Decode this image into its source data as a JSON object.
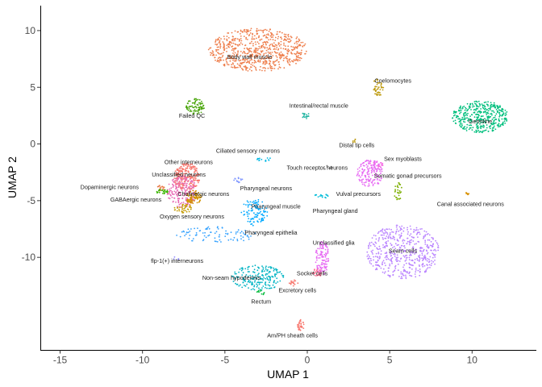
{
  "chart_data": {
    "type": "scatter",
    "xlabel": "UMAP 1",
    "ylabel": "UMAP 2",
    "xlim": [
      -16.2,
      13.9
    ],
    "ylim": [
      -18.2,
      12.2
    ],
    "x_ticks": [
      -15,
      -10,
      -5,
      0,
      5,
      10
    ],
    "y_ticks": [
      -10,
      -5,
      0,
      5,
      10
    ],
    "grid": false,
    "legend": "none",
    "clusters": [
      {
        "label": "Body wall muscle",
        "color": "#EE7F4D",
        "cx": -3.0,
        "cy": 8.3,
        "rx": 3.0,
        "ry": 1.9,
        "n": 700,
        "label_x": -3.5,
        "label_y": 7.7
      },
      {
        "label": "Coelomocytes",
        "color": "#BE9B11",
        "cx": 4.3,
        "cy": 5.0,
        "rx": 0.35,
        "ry": 0.8,
        "n": 50,
        "label_x": 5.2,
        "label_y": 5.6
      },
      {
        "label": "Germline",
        "color": "#00BF7D",
        "cx": 10.5,
        "cy": 2.4,
        "rx": 1.7,
        "ry": 1.4,
        "n": 400,
        "label_x": 10.5,
        "label_y": 2.0
      },
      {
        "label": "Failed QC",
        "color": "#49A50A",
        "cx": -6.8,
        "cy": 3.3,
        "rx": 0.55,
        "ry": 0.7,
        "n": 80,
        "label_x": -7.0,
        "label_y": 2.5
      },
      {
        "label": "Intestinal/rectal muscle",
        "color": "#1EB3A0",
        "cx": -0.1,
        "cy": 2.5,
        "rx": 0.25,
        "ry": 0.35,
        "n": 20,
        "label_x": 0.7,
        "label_y": 3.4
      },
      {
        "label": "Distal tip cells",
        "color": "#BE9B11",
        "cx": 2.8,
        "cy": 0.3,
        "rx": 0.15,
        "ry": 0.2,
        "n": 6,
        "label_x": 3.0,
        "label_y": -0.1
      },
      {
        "label": "Ciliated sensory neurons",
        "color": "#00B8E5",
        "cx": -2.7,
        "cy": -1.3,
        "rx": 0.5,
        "ry": 0.25,
        "n": 15,
        "label_x": -3.6,
        "label_y": -0.6
      },
      {
        "label": "Sex myoblasts",
        "color": "#F564E3",
        "cx": 4.2,
        "cy": -1.8,
        "rx": 0.4,
        "ry": 0.3,
        "n": 20,
        "label_x": 5.8,
        "label_y": -1.3
      },
      {
        "label": "Other interneurons",
        "color": "#F8766D",
        "cx": -7.3,
        "cy": -2.9,
        "rx": 0.8,
        "ry": 1.2,
        "n": 220,
        "label_x": -7.2,
        "label_y": -1.6
      },
      {
        "label": "Touch receptor neurons",
        "color": "#7F7F7F",
        "cx": 1.2,
        "cy": -2.1,
        "rx": 0.3,
        "ry": 0.2,
        "n": 8,
        "label_x": 0.6,
        "label_y": -2.1
      },
      {
        "label": "Somatic gonad precursors",
        "color": "#E76BF3",
        "cx": 3.8,
        "cy": -2.6,
        "rx": 0.8,
        "ry": 1.2,
        "n": 160,
        "label_x": 6.1,
        "label_y": -2.8
      },
      {
        "label": "Unclassified neurons",
        "color": "#E86BB5",
        "cx": -7.6,
        "cy": -4.2,
        "rx": 0.9,
        "ry": 1.4,
        "n": 200,
        "label_x": -7.8,
        "label_y": -2.7
      },
      {
        "label": "Dopaminergic neurons",
        "color": "#E8723E",
        "cx": -8.9,
        "cy": -3.9,
        "rx": 0.25,
        "ry": 0.25,
        "n": 15,
        "label_x": -12.0,
        "label_y": -3.8
      },
      {
        "label": "Pharyngeal neurons",
        "color": "#7F96FF",
        "cx": -4.2,
        "cy": -3.2,
        "rx": 0.3,
        "ry": 0.25,
        "n": 15,
        "label_x": -2.5,
        "label_y": -3.9
      },
      {
        "label": "Cholinergic neurons",
        "color": "#D39200",
        "cx": -6.9,
        "cy": -4.7,
        "rx": 0.5,
        "ry": 0.6,
        "n": 80,
        "label_x": -6.3,
        "label_y": -4.4
      },
      {
        "label": "GABAergic neurons",
        "color": "#39B600",
        "cx": -8.8,
        "cy": -4.2,
        "rx": 0.4,
        "ry": 0.2,
        "n": 25,
        "label_x": -10.4,
        "label_y": -4.9
      },
      {
        "label": "Vulval precursors",
        "color": "#7CAE00",
        "cx": 5.5,
        "cy": -4.2,
        "rx": 0.25,
        "ry": 0.8,
        "n": 30,
        "label_x": 3.1,
        "label_y": -4.4
      },
      {
        "label": "Canal associated neurons",
        "color": "#D89000",
        "cx": 9.7,
        "cy": -4.4,
        "rx": 0.15,
        "ry": 0.15,
        "n": 8,
        "label_x": 9.9,
        "label_y": -5.3
      },
      {
        "label": "Pharyngeal muscle",
        "color": "#00A9FF",
        "cx": -3.2,
        "cy": -6.0,
        "rx": 0.8,
        "ry": 1.2,
        "n": 100,
        "label_x": -1.9,
        "label_y": -5.5
      },
      {
        "label": "Pharyngeal gland",
        "color": "#00BCD8",
        "cx": 0.9,
        "cy": -4.6,
        "rx": 0.5,
        "ry": 0.2,
        "n": 15,
        "label_x": 1.7,
        "label_y": -5.9
      },
      {
        "label": "Oxygen sensory neurons",
        "color": "#C49A00",
        "cx": -7.5,
        "cy": -5.7,
        "rx": 0.6,
        "ry": 0.4,
        "n": 40,
        "label_x": -7.0,
        "label_y": -6.4
      },
      {
        "label": "Pharyngeal epithelia",
        "color": "#35A2FF",
        "cx": -5.5,
        "cy": -8.0,
        "rx": 2.5,
        "ry": 0.7,
        "n": 90,
        "label_x": -2.2,
        "label_y": -7.8
      },
      {
        "label": "Unclassified glia",
        "color": "#E76BF3",
        "cx": 0.9,
        "cy": -10.0,
        "rx": 0.4,
        "ry": 1.6,
        "n": 120,
        "label_x": 1.6,
        "label_y": -8.7
      },
      {
        "label": "Seam cells",
        "color": "#B983FF",
        "cx": 5.8,
        "cy": -9.5,
        "rx": 2.2,
        "ry": 2.4,
        "n": 500,
        "label_x": 5.8,
        "label_y": -9.4
      },
      {
        "label": "flp-1(+) interneurons",
        "color": "#9590FF",
        "cx": -8.0,
        "cy": -10.1,
        "rx": 0.2,
        "ry": 0.2,
        "n": 5,
        "label_x": -7.9,
        "label_y": -10.3
      },
      {
        "label": "Socket cells",
        "color": "#FF6C91",
        "cx": 0.6,
        "cy": -11.4,
        "rx": 0.3,
        "ry": 0.4,
        "n": 25,
        "label_x": 0.3,
        "label_y": -11.4
      },
      {
        "label": "Non-seam hypodermis",
        "color": "#00B4C4",
        "cx": -3.0,
        "cy": -11.8,
        "rx": 1.6,
        "ry": 1.1,
        "n": 200,
        "label_x": -4.6,
        "label_y": -11.8
      },
      {
        "label": "Excretory cells",
        "color": "#F8766D",
        "cx": -0.8,
        "cy": -12.3,
        "rx": 0.3,
        "ry": 0.3,
        "n": 15,
        "label_x": -0.6,
        "label_y": -12.9
      },
      {
        "label": "Rectum",
        "color": "#00BA38",
        "cx": -2.8,
        "cy": -13.1,
        "rx": 0.3,
        "ry": 0.2,
        "n": 10,
        "label_x": -2.8,
        "label_y": -13.9
      },
      {
        "label": "Am/PH sheath cells",
        "color": "#F8766D",
        "cx": -0.4,
        "cy": -16.0,
        "rx": 0.2,
        "ry": 0.5,
        "n": 30,
        "label_x": -0.9,
        "label_y": -16.9
      }
    ]
  }
}
